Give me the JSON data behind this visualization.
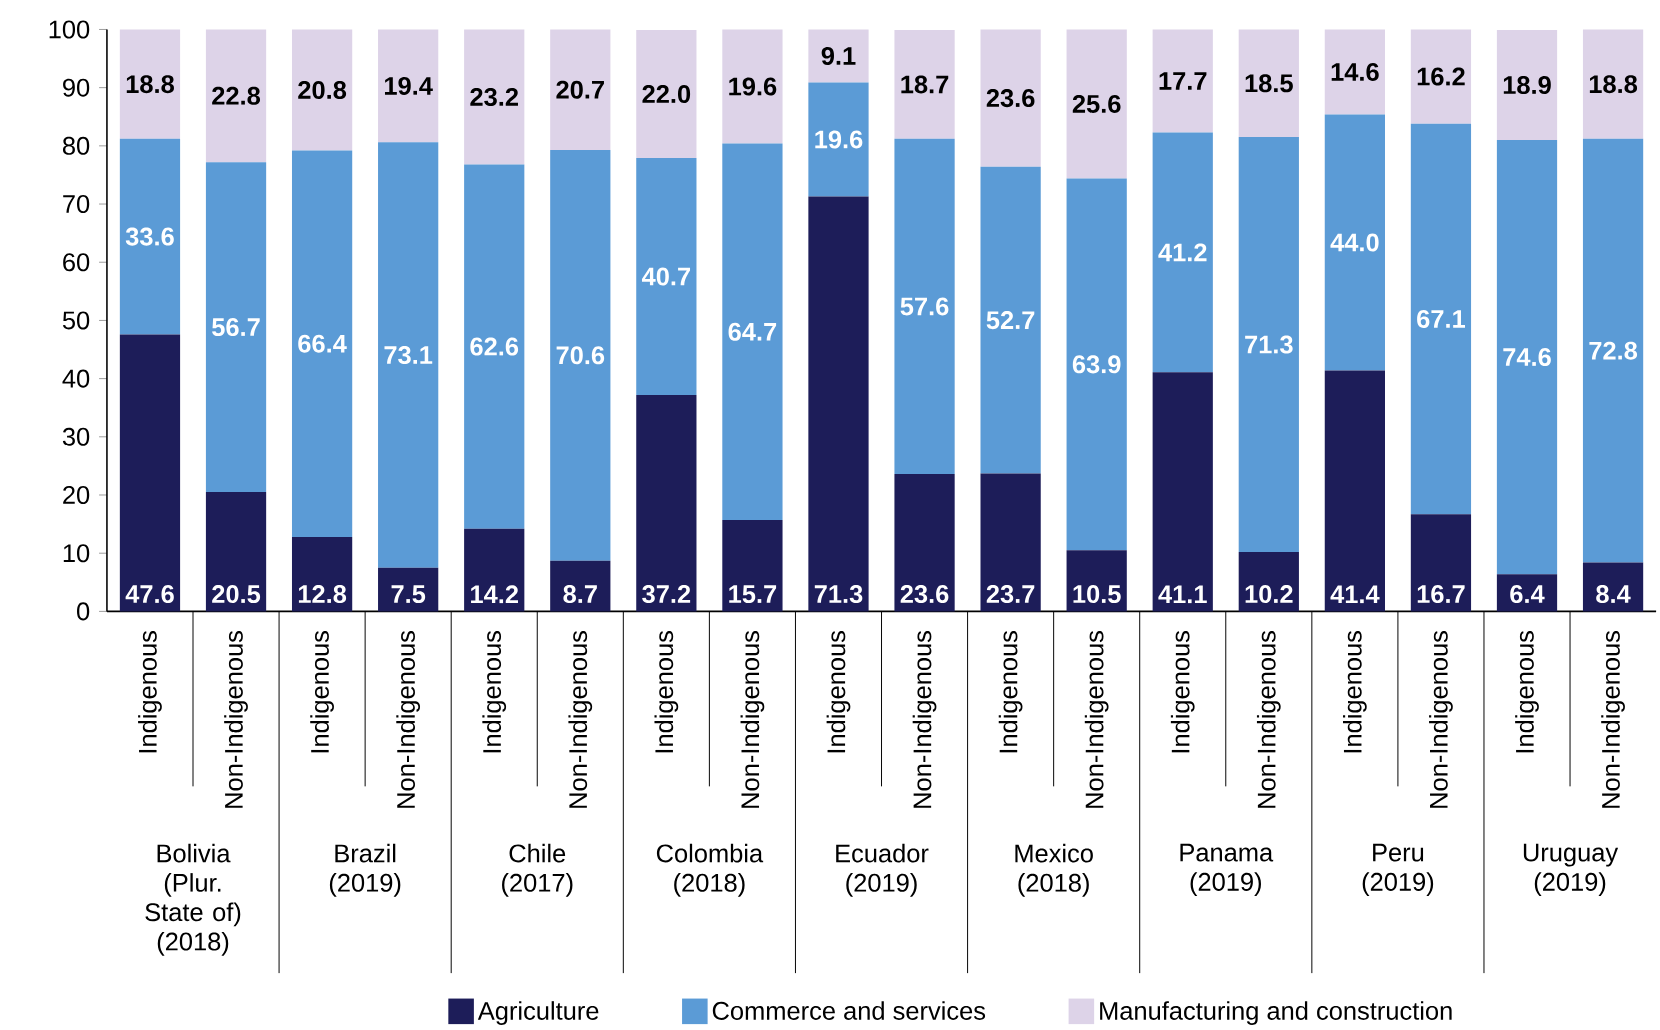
{
  "chart_data": {
    "type": "bar",
    "stacked": true,
    "legend": "bottom",
    "grid": false,
    "categories": [
      "Indigenous",
      "Non-Indigenous",
      "Indigenous",
      "Non-Indigenous",
      "Indigenous",
      "Non-Indigenous",
      "Indigenous",
      "Non-Indigenous",
      "Indigenous",
      "Non-Indigenous",
      "Indigenous",
      "Non-Indigenous",
      "Indigenous",
      "Non-Indigenous",
      "Indigenous",
      "Non-Indigenous",
      "Indigenous",
      "Non-Indigenous"
    ],
    "ylim": [
      0,
      100
    ],
    "yticks": [
      0,
      10,
      20,
      30,
      40,
      50,
      60,
      70,
      80,
      90,
      100
    ],
    "series": [
      {
        "name": "Agriculture",
        "color": "#1d1d59",
        "values": [
          47.6,
          20.5,
          12.8,
          7.5,
          14.2,
          8.7,
          37.2,
          15.7,
          71.3,
          23.6,
          23.7,
          10.5,
          41.1,
          10.2,
          41.4,
          16.7,
          6.4,
          8.4
        ],
        "value_labels": [
          "47.6",
          "20.5",
          "12.8",
          "7.5",
          "14.2",
          "8.7",
          "37.2",
          "15.7",
          "71.3",
          "23.6",
          "23.7",
          "10.5",
          "41.1",
          "10.2",
          "41.4",
          "16.7",
          "6.4",
          "8.4"
        ]
      },
      {
        "name": "Commerce and services",
        "color": "#5b9bd6",
        "values": [
          33.6,
          56.7,
          66.4,
          73.1,
          62.6,
          70.6,
          40.7,
          64.7,
          19.6,
          57.6,
          52.7,
          63.9,
          41.2,
          71.3,
          44.0,
          67.1,
          74.6,
          72.8
        ],
        "value_labels": [
          "33.6",
          "56.7",
          "66.4",
          "73.1",
          "62.6",
          "70.6",
          "40.7",
          "64.7",
          "19.6",
          "57.6",
          "52.7",
          "63.9",
          "41.2",
          "71.3",
          "44.0",
          "67.1",
          "74.6",
          "72.8"
        ]
      },
      {
        "name": "Manufacturing and construction",
        "color": "#ddd3e8",
        "values": [
          18.8,
          22.8,
          20.8,
          19.4,
          23.2,
          20.7,
          22.0,
          19.6,
          9.1,
          18.7,
          23.6,
          25.6,
          17.7,
          18.5,
          14.6,
          16.2,
          18.9,
          18.8
        ],
        "value_labels": [
          "18.8",
          "22.8",
          "20.8",
          "19.4",
          "23.2",
          "20.7",
          "22.0",
          "19.6",
          "9.1",
          "18.7",
          "23.6",
          "25.6",
          "17.7",
          "18.5",
          "14.6",
          "16.2",
          "18.9",
          "18.8"
        ]
      }
    ],
    "annotations": [
      "Bolivia (Plur. State of) (2018)",
      "Brazil (2019)",
      "Chile (2017)",
      "Colombia (2018)",
      "Ecuador (2019)",
      "Mexico (2018)",
      "Panama (2019)",
      "Peru (2019)",
      "Uruguay (2019)"
    ]
  }
}
